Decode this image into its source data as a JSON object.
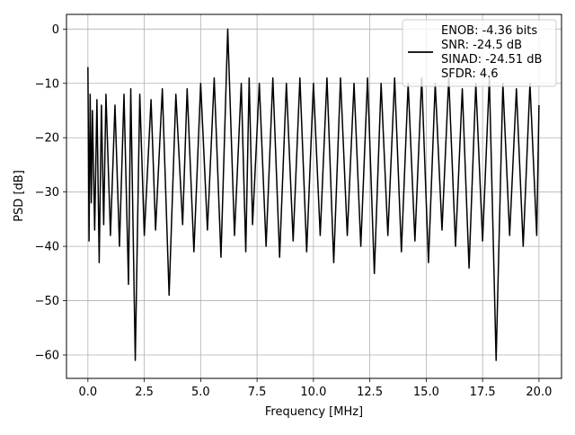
{
  "chart_data": {
    "type": "line",
    "title": "",
    "xlabel": "Frequency [MHz]",
    "ylabel": "PSD [dB]",
    "xlim": [
      -0.95,
      21.0
    ],
    "ylim": [
      -64.3,
      2.7
    ],
    "xticks": [
      0.0,
      2.5,
      5.0,
      7.5,
      10.0,
      12.5,
      15.0,
      17.5,
      20.0
    ],
    "xtick_labels": [
      "0.0",
      "2.5",
      "5.0",
      "7.5",
      "10.0",
      "12.5",
      "15.0",
      "17.5",
      "20.0"
    ],
    "yticks": [
      0,
      -10,
      -20,
      -30,
      -40,
      -50,
      -60
    ],
    "ytick_labels": [
      "0",
      "−10",
      "−20",
      "−30",
      "−40",
      "−50",
      "−60"
    ],
    "grid": true,
    "legend_position": "top-right",
    "legend_text": [
      "ENOB: -4.36 bits",
      "SNR: -24.5 dB",
      "SINAD: -24.51 dB",
      "SFDR: 4.6"
    ],
    "line_color": "#000000",
    "grid_color": "#b0b0b0",
    "series": [
      {
        "x": [
          0.0,
          0.05,
          0.1,
          0.15,
          0.2,
          0.3,
          0.4,
          0.5,
          0.6,
          0.7,
          0.8,
          1.0,
          1.2,
          1.4,
          1.6,
          1.8,
          1.9,
          2.1,
          2.3,
          2.5,
          2.8,
          3.0,
          3.3,
          3.6,
          3.9,
          4.2,
          4.4,
          4.7,
          5.0,
          5.3,
          5.6,
          5.9,
          6.2,
          6.5,
          6.8,
          7.0,
          7.15,
          7.3,
          7.6,
          7.9,
          8.2,
          8.5,
          8.8,
          9.1,
          9.4,
          9.7,
          10.0,
          10.3,
          10.6,
          10.9,
          11.2,
          11.5,
          11.8,
          12.1,
          12.4,
          12.7,
          13.0,
          13.3,
          13.6,
          13.9,
          14.2,
          14.5,
          14.8,
          15.1,
          15.4,
          15.7,
          16.0,
          16.3,
          16.6,
          16.9,
          17.2,
          17.5,
          17.8,
          18.1,
          18.4,
          18.7,
          19.0,
          19.3,
          19.6,
          19.9,
          20.0
        ],
        "y": [
          -7,
          -39,
          -12,
          -32,
          -15,
          -37,
          -13,
          -43,
          -14,
          -36,
          -12,
          -38,
          -14,
          -40,
          -12,
          -47,
          -11,
          -61,
          -12,
          -38,
          -13,
          -37,
          -11,
          -49,
          -12,
          -36,
          -11,
          -41,
          -10,
          -37,
          -9,
          -42,
          0,
          -38,
          -10,
          -41,
          -9,
          -36,
          -10,
          -40,
          -9,
          -42,
          -10,
          -39,
          -9,
          -41,
          -10,
          -38,
          -9,
          -43,
          -9,
          -38,
          -10,
          -40,
          -9,
          -45,
          -10,
          -38,
          -9,
          -41,
          -10,
          -39,
          -9,
          -43,
          -10,
          -37,
          -9,
          -40,
          -11,
          -44,
          -10,
          -39,
          -9,
          -61,
          -10,
          -38,
          -11,
          -40,
          -10,
          -38,
          -14
        ]
      }
    ]
  }
}
